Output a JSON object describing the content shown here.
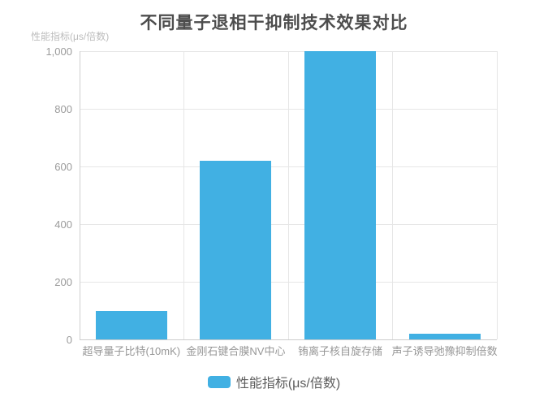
{
  "header": {
    "title": "不同量子退相干抑制技术效果对比"
  },
  "chart_data": {
    "type": "bar",
    "title": "不同量子退相干抑制技术效果对比",
    "categories": [
      "超导量子比特(10mK)",
      "金刚石键合膜NV中心",
      "铕离子核自旋存储",
      "声子诱导弛豫抑制倍数"
    ],
    "values": [
      100,
      620,
      1000,
      20
    ],
    "series_name": "性能指标(μs/倍数)",
    "xlabel": "",
    "ylabel": "性能指标(μs/倍数)",
    "ylim": [
      0,
      1000
    ],
    "yticks": [
      0,
      200,
      400,
      600,
      800,
      1000
    ],
    "ytick_labels": [
      "0",
      "200",
      "400",
      "600",
      "800",
      "1,000"
    ],
    "grid": true,
    "legend_position": "bottom"
  },
  "legend": {
    "label": "性能指标(μs/倍数)"
  },
  "colors": {
    "bar": "#41b0e3",
    "title_text": "#4d4d4d",
    "axis_text": "#9b9b9b",
    "unit_text": "#bcbcbc",
    "legend_text": "#5d5d5d",
    "gridline": "#e6e6e6",
    "axis_line": "#cccccc"
  }
}
